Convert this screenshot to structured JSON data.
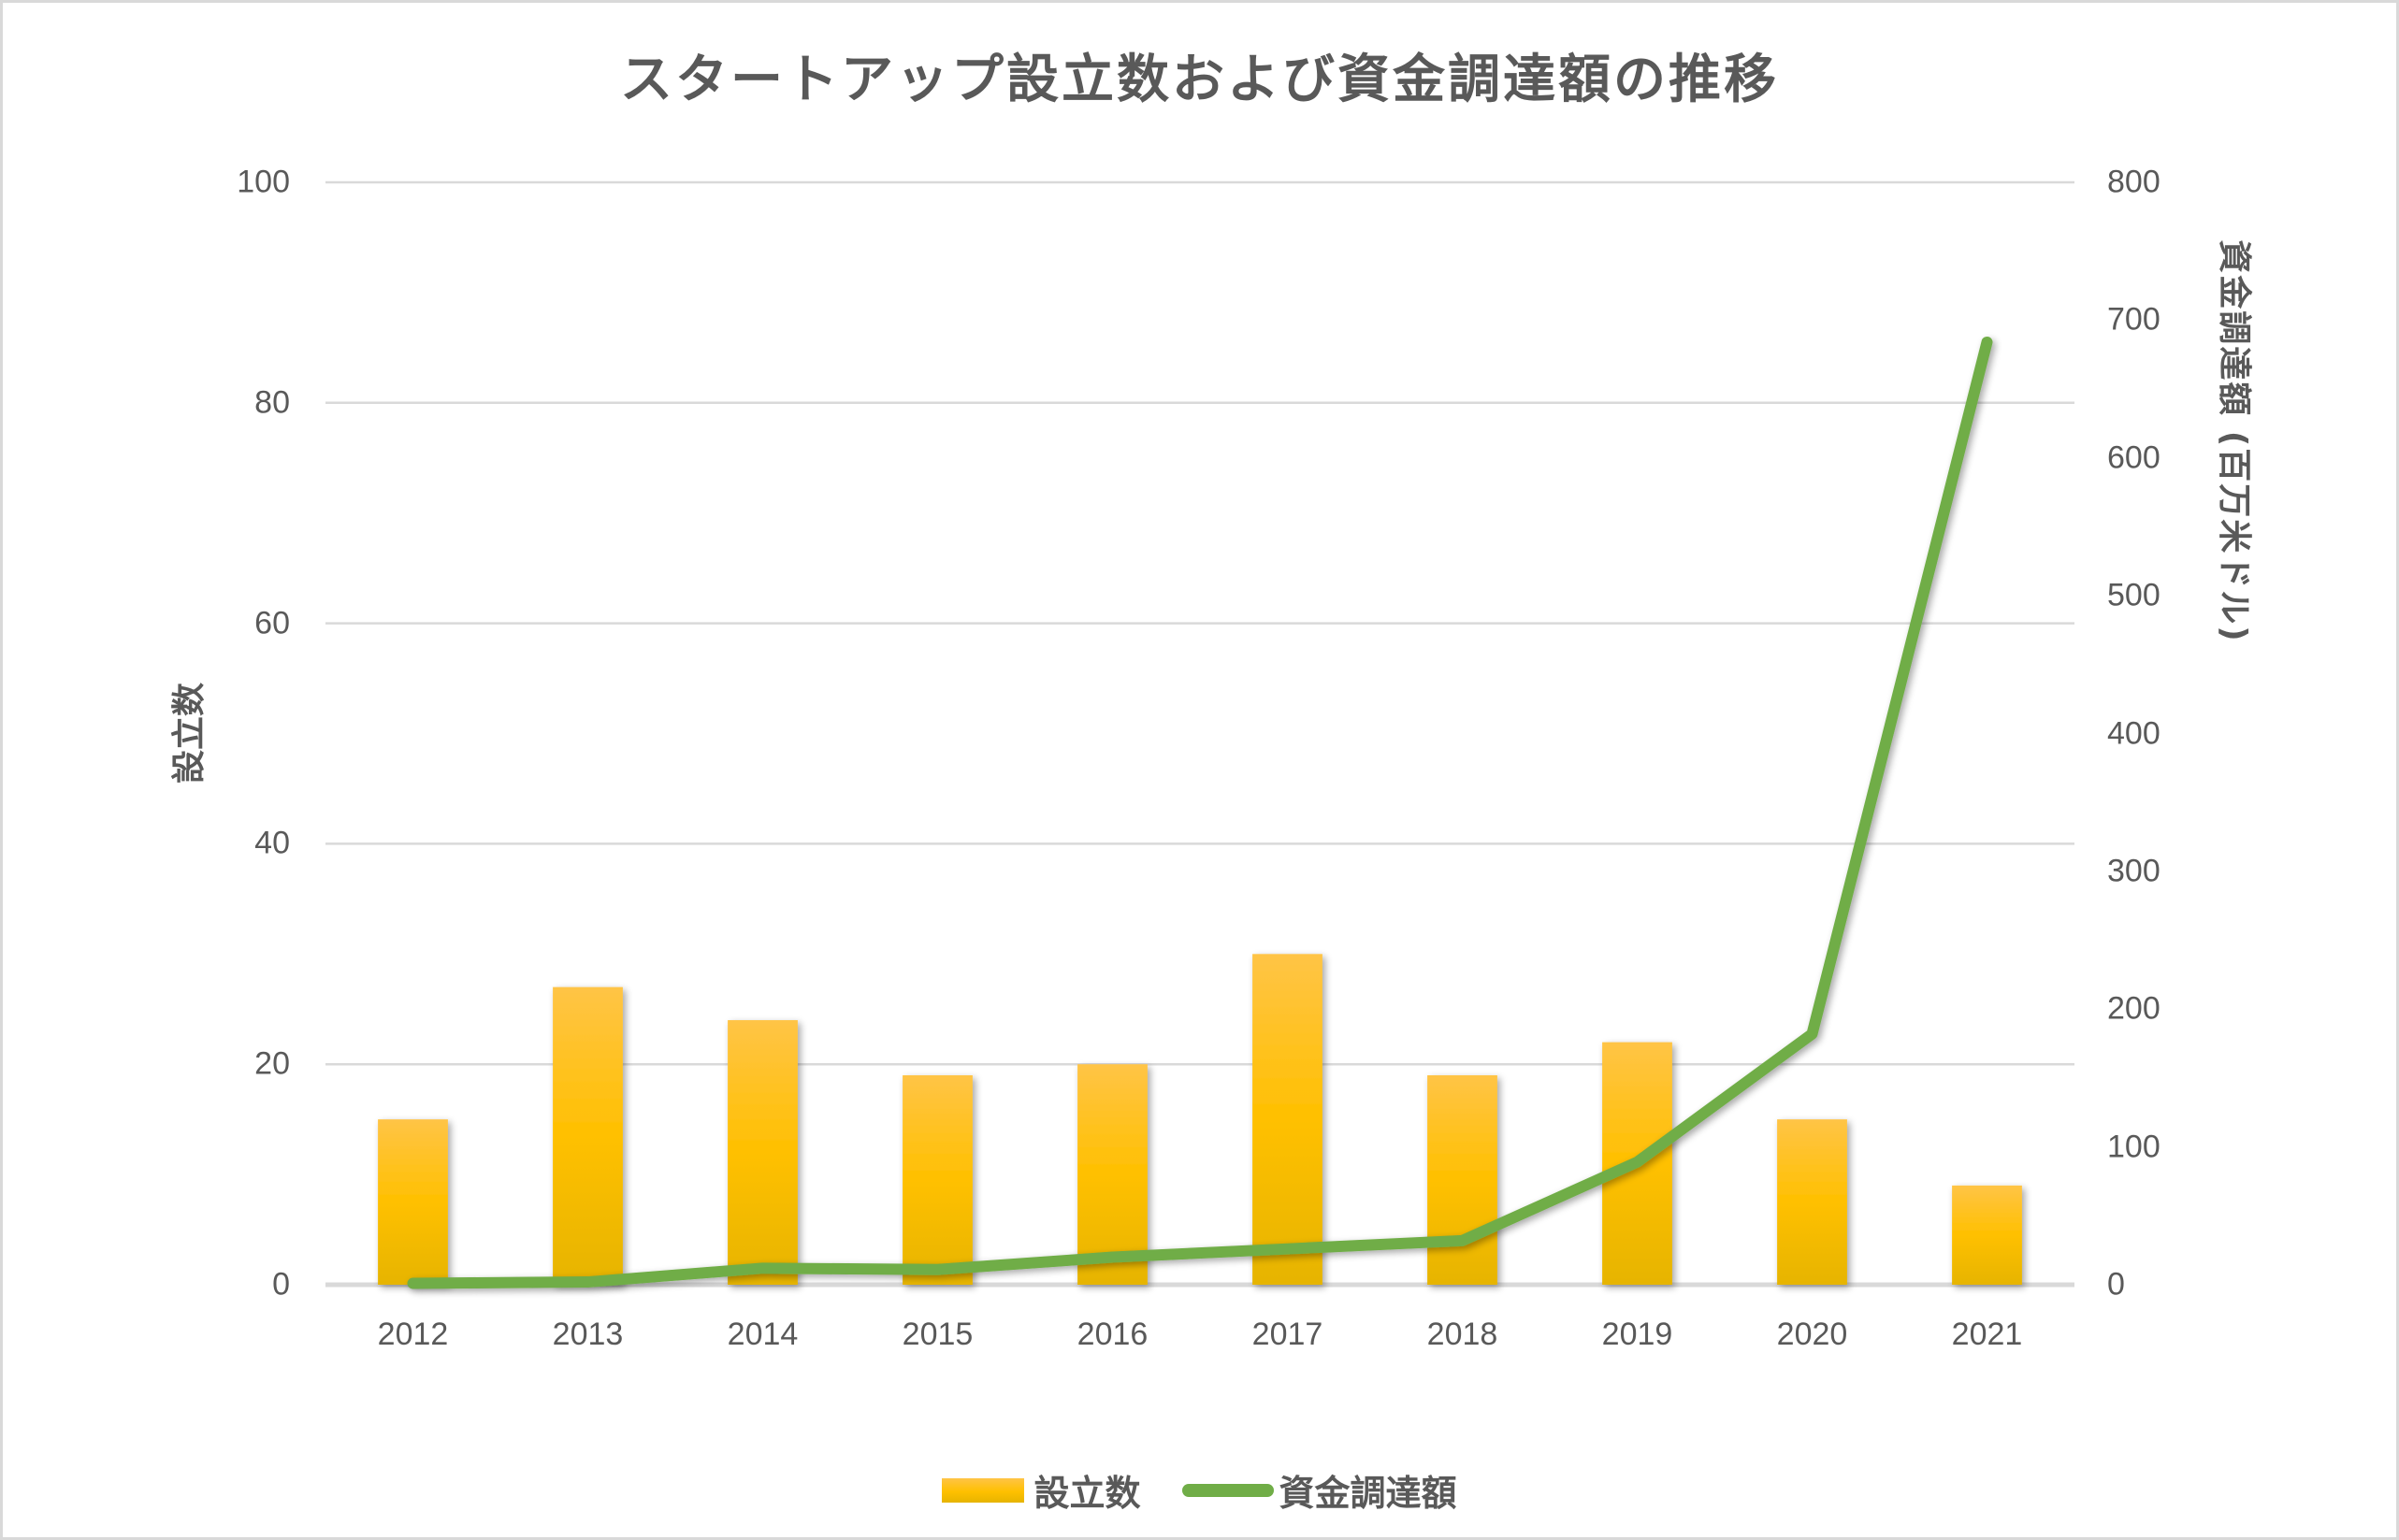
{
  "chart_data": {
    "type": "bar+line",
    "title": "スタートアップ設立数および資金調達額の推移",
    "categories": [
      "2012",
      "2013",
      "2014",
      "2015",
      "2016",
      "2017",
      "2018",
      "2019",
      "2020",
      "2021"
    ],
    "series": [
      {
        "name": "設立数",
        "type": "bar",
        "axis": "left",
        "color": "#ffc000",
        "values": [
          15,
          27,
          24,
          19,
          20,
          30,
          19,
          22,
          15,
          9
        ]
      },
      {
        "name": "資金調達額",
        "type": "line",
        "axis": "right",
        "color": "#70ad47",
        "values": [
          1,
          2,
          12,
          11,
          20,
          26,
          32,
          89,
          182,
          684
        ]
      }
    ],
    "xlabel": "",
    "ylabel": "設立数",
    "ylabel_right": "資金調達額 (百万米ドル)",
    "ylim": [
      0,
      100
    ],
    "ylim_right": [
      0,
      800
    ],
    "yticks": [
      "0",
      "20",
      "40",
      "60",
      "80",
      "100"
    ],
    "yticks_right": [
      "0",
      "100",
      "200",
      "300",
      "400",
      "500",
      "600",
      "700",
      "800"
    ],
    "grid": true,
    "legend_position": "bottom"
  },
  "legend": {
    "bar_label": "設立数",
    "line_label": "資金調達額"
  }
}
